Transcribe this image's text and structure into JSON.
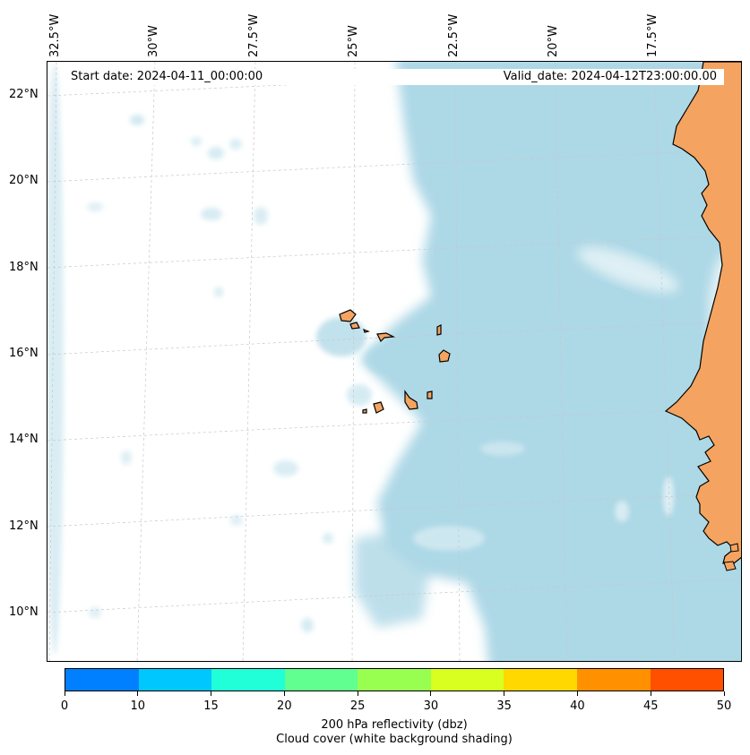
{
  "header": {
    "start_date": "Start date: 2024-04-11_00:00:00",
    "valid_date": "Valid_date: 2024-04-12T23:00:00.00"
  },
  "longitude_labels": [
    "32.5°W",
    "30°W",
    "27.5°W",
    "25°W",
    "22.5°W",
    "20°W",
    "17.5°W"
  ],
  "latitude_labels": [
    "22°N",
    "20°N",
    "18°N",
    "16°N",
    "14°N",
    "12°N",
    "10°N"
  ],
  "colorbar": {
    "ticks": [
      "0",
      "10",
      "15",
      "20",
      "25",
      "30",
      "35",
      "40",
      "45",
      "50"
    ],
    "colors": [
      "#0080ff",
      "#00c8ff",
      "#20ffd8",
      "#60ff90",
      "#98ff50",
      "#d8ff20",
      "#ffd800",
      "#ff9000",
      "#ff5000"
    ],
    "title": "200 hPa reflectivity (dbz)",
    "subtitle": "Cloud cover (white background shading)"
  },
  "colors": {
    "land": "#f4a460",
    "cloud_shading": "#add8e6",
    "gridline": "#c8c8c8"
  }
}
